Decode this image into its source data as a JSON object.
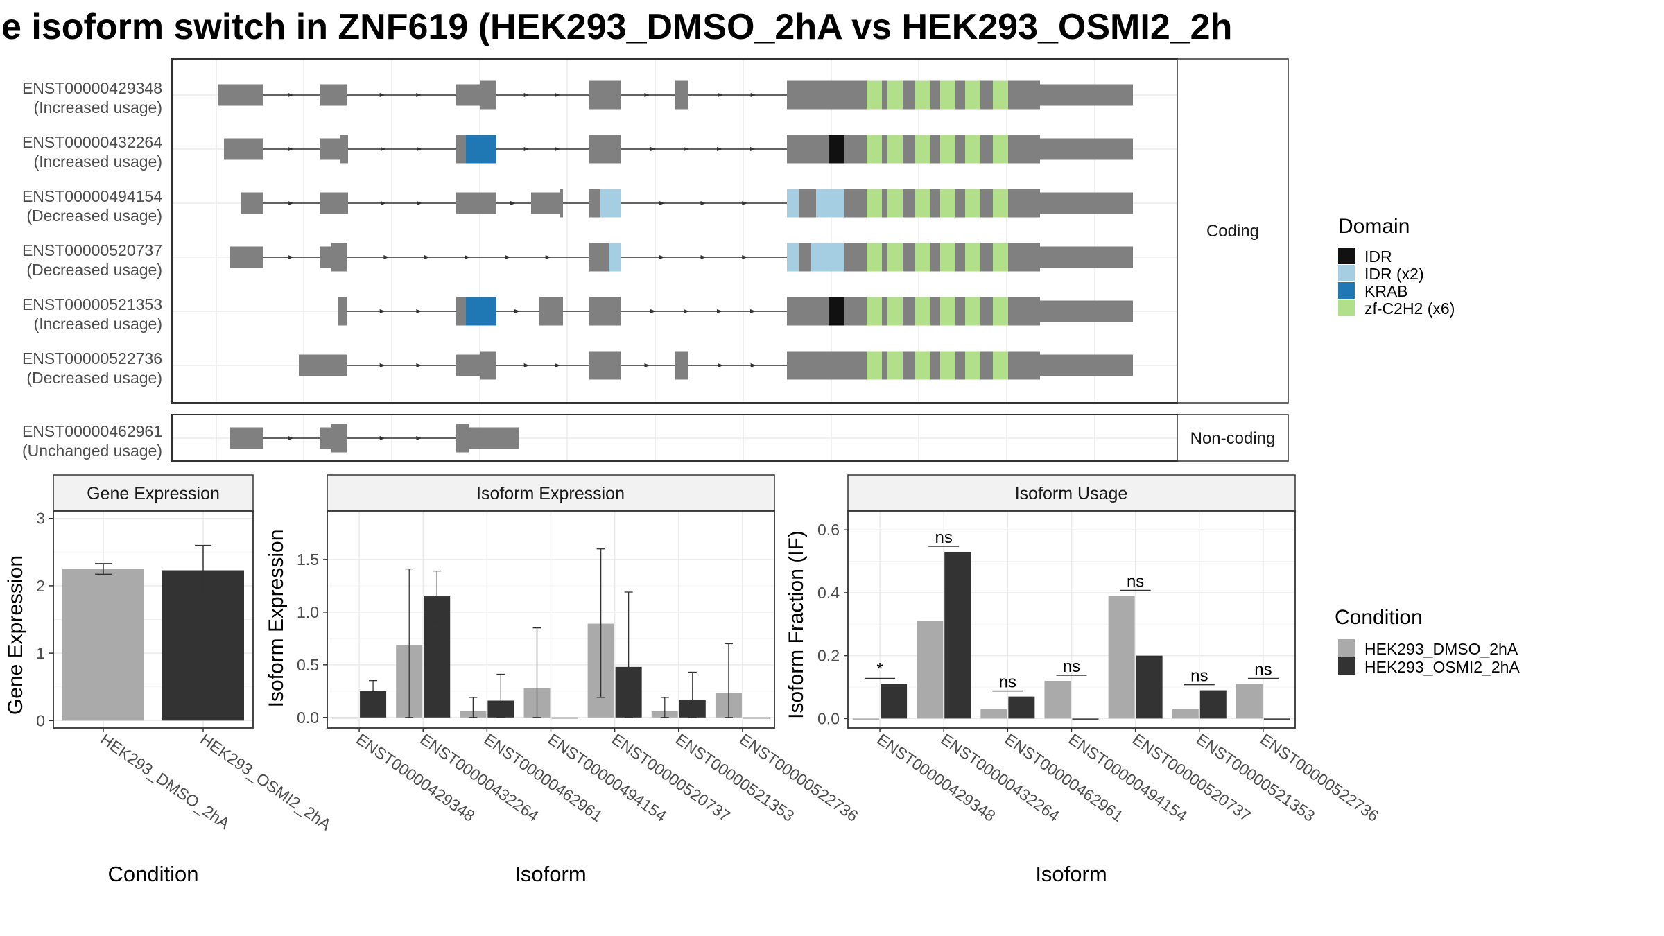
{
  "title": "e isoform switch in ZNF619 (HEK293_DMSO_2hA vs HEK293_OSMI2_2h",
  "colors": {
    "exon": "#808080",
    "IDR": "#111111",
    "IDR (x2)": "#a6cee3",
    "KRAB": "#1f78b4",
    "zf-C2H2 (x6)": "#b2df8a",
    "HEK293_DMSO_2hA": "#aaaaaa",
    "HEK293_OSMI2_2hA": "#333333",
    "grid": "#ebebeb"
  },
  "structure": {
    "coding_strip": "Coding",
    "noncoding_strip": "Non-coding",
    "coding_isoforms": [
      {
        "id": "ENST00000429348",
        "usage": "(Increased usage)"
      },
      {
        "id": "ENST00000432264",
        "usage": "(Increased usage)"
      },
      {
        "id": "ENST00000494154",
        "usage": "(Decreased usage)"
      },
      {
        "id": "ENST00000520737",
        "usage": "(Decreased usage)"
      },
      {
        "id": "ENST00000521353",
        "usage": "(Increased usage)"
      },
      {
        "id": "ENST00000522736",
        "usage": "(Decreased usage)"
      }
    ],
    "noncoding_isoforms": [
      {
        "id": "ENST00000462961",
        "usage": "(Unchanged usage)"
      }
    ]
  },
  "legends": {
    "domain_title": "Domain",
    "domain_items": [
      "IDR",
      "IDR (x2)",
      "KRAB",
      "zf-C2H2 (x6)"
    ],
    "condition_title": "Condition",
    "condition_items": [
      "HEK293_DMSO_2hA",
      "HEK293_OSMI2_2hA"
    ]
  },
  "chart_data": [
    {
      "type": "bar",
      "title": "Gene Expression",
      "xlabel": "Condition",
      "ylabel": "Gene Expression",
      "categories": [
        "HEK293_DMSO_2hA",
        "HEK293_OSMI2_2hA"
      ],
      "values": [
        2.25,
        2.23
      ],
      "error_low": [
        2.17,
        1.86
      ],
      "error_high": [
        2.33,
        2.6
      ],
      "ylim": [
        -0.11,
        3.11
      ],
      "yticks": [
        0,
        1,
        2,
        3
      ],
      "ytick_labels": [
        "0",
        "1",
        "2",
        "3"
      ]
    },
    {
      "type": "bar",
      "title": "Isoform Expression",
      "xlabel": "Isoform",
      "ylabel": "Isoform Expression",
      "categories": [
        "ENST00000429348",
        "ENST00000432264",
        "ENST00000462961",
        "ENST00000494154",
        "ENST00000520737",
        "ENST00000521353",
        "ENST00000522736"
      ],
      "series": [
        {
          "name": "HEK293_DMSO_2hA",
          "values": [
            0.0,
            0.69,
            0.06,
            0.28,
            0.89,
            0.06,
            0.23
          ],
          "error_low": [
            0.0,
            0.0,
            0.0,
            0.0,
            0.19,
            0.0,
            0.0
          ],
          "error_high": [
            0.0,
            1.41,
            0.19,
            0.85,
            1.6,
            0.19,
            0.7
          ]
        },
        {
          "name": "HEK293_OSMI2_2hA",
          "values": [
            0.25,
            1.15,
            0.16,
            0.0,
            0.48,
            0.17,
            0.0
          ],
          "error_low": [
            0.14,
            0.9,
            0.0,
            0.0,
            0.0,
            0.0,
            0.0
          ],
          "error_high": [
            0.35,
            1.39,
            0.41,
            0.0,
            1.19,
            0.43,
            0.0
          ]
        }
      ],
      "ylim": [
        -0.1,
        1.96
      ],
      "yticks": [
        0,
        0.5,
        1,
        1.5
      ],
      "ytick_labels": [
        "0.0",
        "0.5",
        "1.0",
        "1.5"
      ]
    },
    {
      "type": "bar",
      "title": "Isoform Usage",
      "xlabel": "Isoform",
      "ylabel": "Isoform Fraction (IF)",
      "categories": [
        "ENST00000429348",
        "ENST00000432264",
        "ENST00000462961",
        "ENST00000494154",
        "ENST00000520737",
        "ENST00000521353",
        "ENST00000522736"
      ],
      "series": [
        {
          "name": "HEK293_DMSO_2hA",
          "values": [
            0.0,
            0.31,
            0.03,
            0.12,
            0.39,
            0.03,
            0.11
          ]
        },
        {
          "name": "HEK293_OSMI2_2hA",
          "values": [
            0.11,
            0.53,
            0.07,
            0.0,
            0.2,
            0.09,
            0.0
          ]
        }
      ],
      "significance": [
        "*",
        "ns",
        "ns",
        "ns",
        "ns",
        "ns",
        "ns"
      ],
      "ylim": [
        -0.03,
        0.66
      ],
      "yticks": [
        0,
        0.2,
        0.4,
        0.6
      ],
      "ytick_labels": [
        "0.0",
        "0.2",
        "0.4",
        "0.6"
      ]
    }
  ]
}
